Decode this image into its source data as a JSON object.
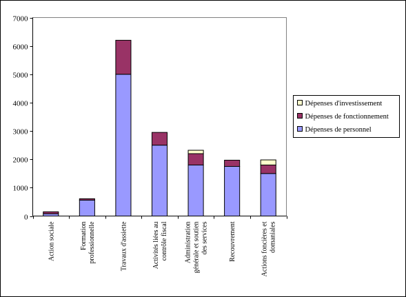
{
  "chart_data": {
    "type": "bar",
    "stacked": true,
    "title": "",
    "xlabel": "",
    "ylabel": "",
    "ylim": [
      0,
      7000
    ],
    "yticks": [
      0,
      1000,
      2000,
      3000,
      4000,
      5000,
      6000,
      7000
    ],
    "grid": false,
    "legend_position": "right",
    "categories": [
      [
        "Action sociale"
      ],
      [
        "Formation",
        "professionnelle"
      ],
      [
        "Travaux d'assiette"
      ],
      [
        "Activités liées au",
        "contrôle fiscal"
      ],
      [
        "Administration",
        "générale et soutien",
        "des services"
      ],
      [
        "Recouvrement"
      ],
      [
        "Actions foncières et",
        "domaniales"
      ]
    ],
    "series": [
      {
        "name": "Dépenses de personnel",
        "color": "#9999FF",
        "values": [
          80,
          560,
          5000,
          2500,
          1800,
          1750,
          1500
        ]
      },
      {
        "name": "Dépenses de fonctionnement",
        "color": "#993366",
        "values": [
          70,
          50,
          1200,
          450,
          400,
          220,
          300
        ]
      },
      {
        "name": "Dépenses d'investissement",
        "color": "#FFFFCC",
        "values": [
          0,
          0,
          0,
          0,
          120,
          0,
          180
        ]
      }
    ],
    "legend_order": [
      "Dépenses d'investissement",
      "Dépenses de fonctionnement",
      "Dépenses de personnel"
    ]
  }
}
